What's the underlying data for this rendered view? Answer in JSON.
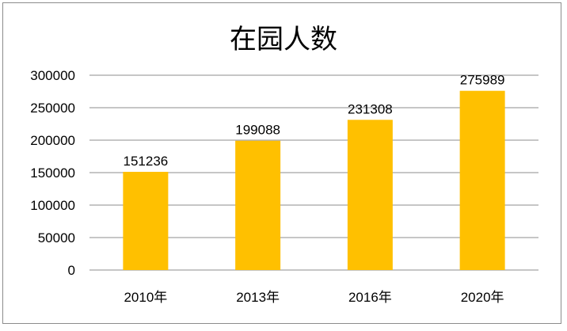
{
  "chart_data": {
    "type": "bar",
    "title": "在园人数",
    "xlabel": "",
    "ylabel": "",
    "categories": [
      "2010年",
      "2013年",
      "2016年",
      "2020年"
    ],
    "values": [
      151236,
      199088,
      231308,
      275989
    ],
    "ylim": [
      0,
      300000
    ],
    "yticks": [
      "0",
      "50000",
      "100000",
      "150000",
      "200000",
      "250000",
      "300000"
    ],
    "data_labels": [
      "151236",
      "199088",
      "231308",
      "275989"
    ],
    "bar_color": "#FFC000",
    "grid": true,
    "legend": "none"
  }
}
